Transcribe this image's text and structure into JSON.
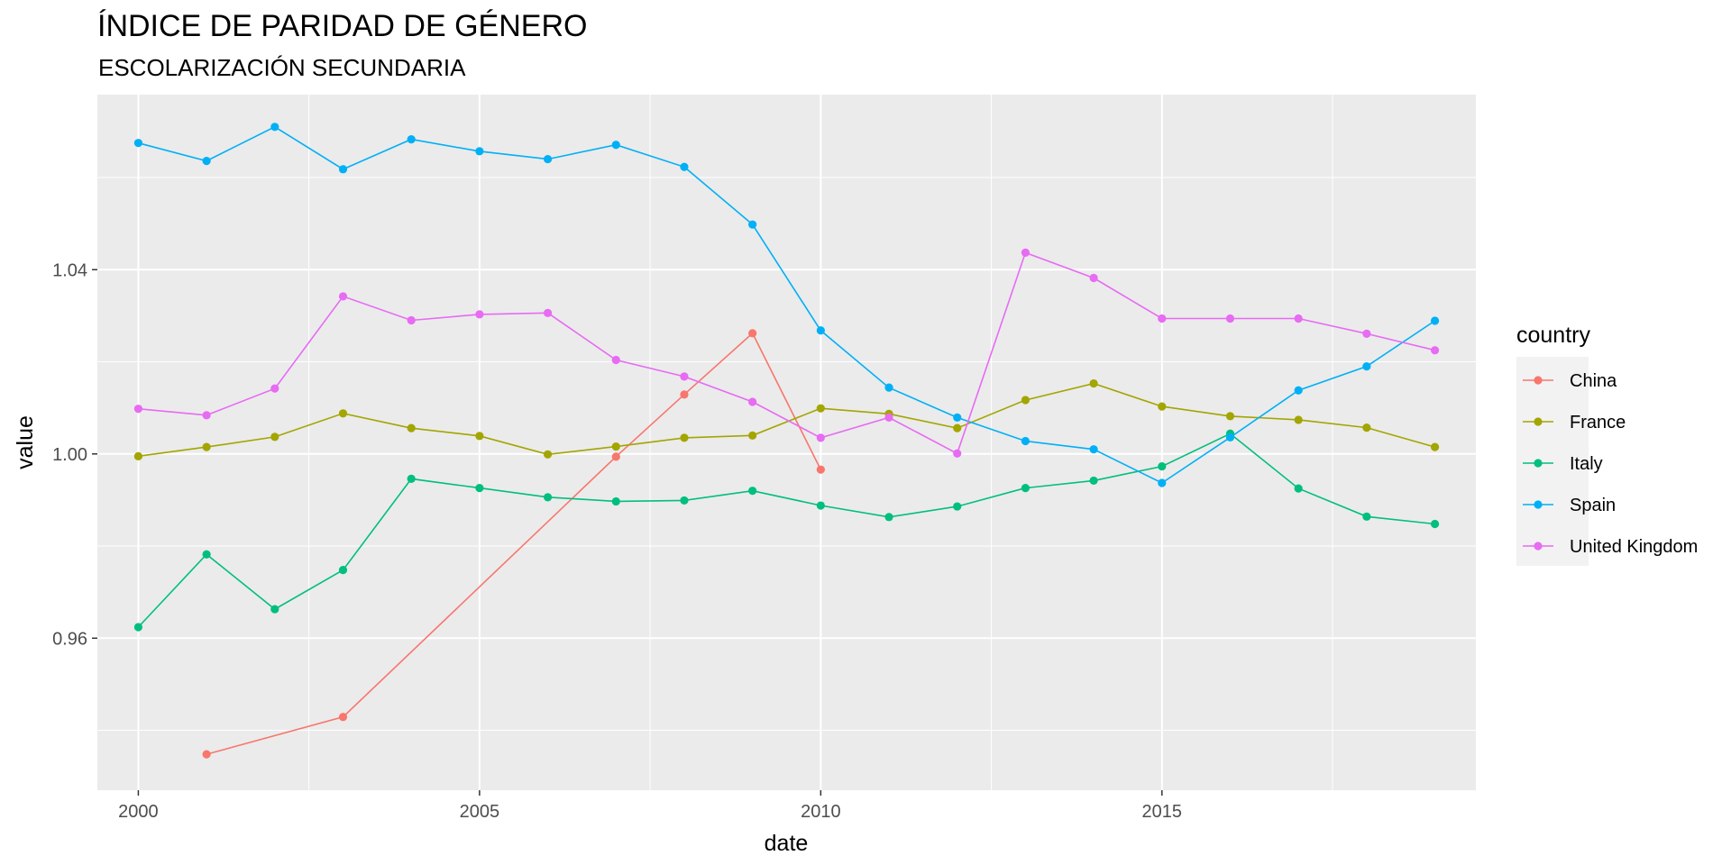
{
  "chart_data": {
    "type": "line",
    "title": "ÍNDICE DE PARIDAD DE GÉNERO",
    "subtitle": "ESCOLARIZACIÓN SECUNDARIA",
    "xlabel": "date",
    "ylabel": "value",
    "xlim": [
      1999.4,
      2019.6
    ],
    "ylim": [
      0.927,
      1.078
    ],
    "x_ticks": [
      2000,
      2005,
      2010,
      2015
    ],
    "x_tick_labels": [
      "2000",
      "2005",
      "2010",
      "2015"
    ],
    "x_minor_ticks": [
      2002.5,
      2007.5,
      2012.5,
      2017.5
    ],
    "y_ticks": [
      0.96,
      1.0,
      1.04
    ],
    "y_tick_labels": [
      "0.96",
      "1.00",
      "1.04"
    ],
    "y_minor_ticks": [
      0.94,
      0.98,
      1.02,
      1.06
    ],
    "grid": true,
    "panel_background": "#ebebeb",
    "legend": {
      "title": "country",
      "position": "right"
    },
    "series": [
      {
        "name": "China",
        "color": "#F8766D",
        "x": [
          2001,
          2003,
          2007,
          2008,
          2009,
          2010
        ],
        "y": [
          0.9348,
          0.9429,
          0.9994,
          1.0129,
          1.0262,
          0.9966
        ]
      },
      {
        "name": "France",
        "color": "#A3A500",
        "x": [
          2000,
          2001,
          2002,
          2003,
          2004,
          2005,
          2006,
          2007,
          2008,
          2009,
          2010,
          2011,
          2012,
          2013,
          2014,
          2015,
          2016,
          2017,
          2018,
          2019
        ],
        "y": [
          0.9995,
          1.0015,
          1.0037,
          1.0088,
          1.0056,
          1.0039,
          0.9999,
          1.0016,
          1.0035,
          1.004,
          1.0099,
          1.0087,
          1.0056,
          1.0117,
          1.0153,
          1.0103,
          1.0082,
          1.0074,
          1.0057,
          1.0015
        ]
      },
      {
        "name": "Italy",
        "color": "#00BF7D",
        "x": [
          2000,
          2001,
          2002,
          2003,
          2004,
          2005,
          2006,
          2007,
          2008,
          2009,
          2010,
          2011,
          2012,
          2013,
          2014,
          2015,
          2016,
          2017,
          2018,
          2019
        ],
        "y": [
          0.9624,
          0.9782,
          0.9663,
          0.9748,
          0.9946,
          0.9926,
          0.9906,
          0.9897,
          0.9899,
          0.992,
          0.9888,
          0.9863,
          0.9886,
          0.9926,
          0.9942,
          0.9973,
          1.0044,
          0.9925,
          0.9864,
          0.9848
        ]
      },
      {
        "name": "Spain",
        "color": "#00B0F6",
        "x": [
          2000,
          2001,
          2002,
          2003,
          2004,
          2005,
          2006,
          2007,
          2008,
          2009,
          2010,
          2011,
          2012,
          2013,
          2014,
          2015,
          2016,
          2017,
          2018,
          2019
        ],
        "y": [
          1.0675,
          1.0636,
          1.071,
          1.0618,
          1.0683,
          1.0657,
          1.064,
          1.0671,
          1.0623,
          1.0498,
          1.0268,
          1.0144,
          1.0079,
          1.0028,
          1.001,
          0.9937,
          1.0036,
          1.0138,
          1.019,
          1.0289
        ]
      },
      {
        "name": "United Kingdom",
        "color": "#E76BF3",
        "x": [
          2000,
          2001,
          2002,
          2003,
          2004,
          2005,
          2006,
          2007,
          2008,
          2009,
          2010,
          2011,
          2012,
          2013,
          2014,
          2015,
          2016,
          2017,
          2018,
          2019
        ],
        "y": [
          1.0098,
          1.0084,
          1.0142,
          1.0342,
          1.029,
          1.0303,
          1.0306,
          1.0204,
          1.0168,
          1.0113,
          1.0035,
          1.0079,
          1.0001,
          1.0437,
          1.0382,
          1.0294,
          1.0294,
          1.0294,
          1.0261,
          1.0225
        ]
      }
    ]
  }
}
